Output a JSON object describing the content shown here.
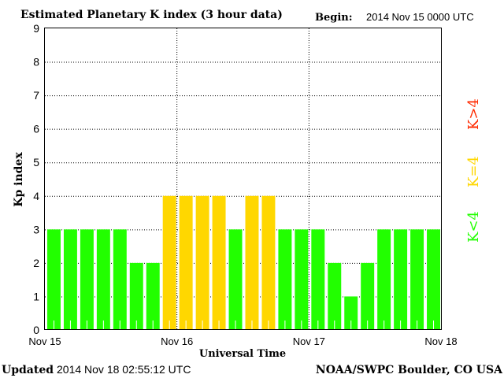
{
  "chart_data": {
    "type": "bar",
    "title": "Estimated Planetary K index (3 hour data)",
    "begin_label": "Begin:",
    "begin_value": "2014 Nov 15 0000 UTC",
    "xlabel": "Universal Time",
    "ylabel": "Kp index",
    "ylim": [
      0,
      9
    ],
    "yticks": [
      "0",
      "1",
      "2",
      "3",
      "4",
      "5",
      "6",
      "7",
      "8",
      "9"
    ],
    "xticks": [
      "Nov 15",
      "Nov 16",
      "Nov 17",
      "Nov 18"
    ],
    "interval_hours": 3,
    "values": [
      3,
      3,
      3,
      3,
      3,
      2,
      2,
      4,
      4,
      4,
      4,
      3,
      4,
      4,
      3,
      3,
      3,
      2,
      1,
      2,
      3,
      3,
      3,
      3
    ],
    "grid": true,
    "legend": [
      {
        "label": "K<4",
        "color": "#22ff00"
      },
      {
        "label": "K=4",
        "color": "#ffd700"
      },
      {
        "label": "K>4",
        "color": "#ff2a00"
      }
    ],
    "legend_placement": "right"
  },
  "footer": {
    "updated_label": "Updated",
    "updated_value": "2014 Nov 18 02:55:12 UTC",
    "source": "NOAA/SWPC Boulder, CO USA"
  }
}
